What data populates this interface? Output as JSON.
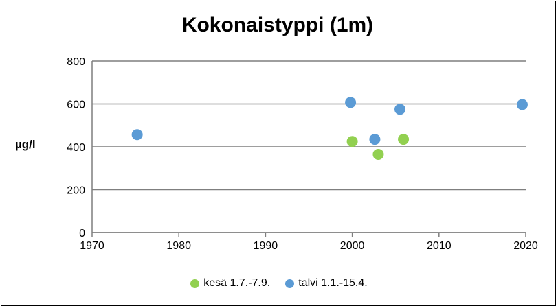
{
  "chart_data": {
    "type": "scatter",
    "title": "Kokonaistyppi (1m)",
    "xlabel": "",
    "ylabel": "µg/l",
    "xlim": [
      1970,
      2020
    ],
    "ylim": [
      0,
      800
    ],
    "xticks": [
      1970,
      1980,
      1990,
      2000,
      2010,
      2020
    ],
    "yticks": [
      0,
      200,
      400,
      600,
      800
    ],
    "grid": "horizontal",
    "legend_position": "bottom",
    "series": [
      {
        "name": "kesä 1.7.-7.9.",
        "color": "#92D050",
        "points": [
          {
            "x": 2000.0,
            "y": 425
          },
          {
            "x": 2003.0,
            "y": 365
          },
          {
            "x": 2005.9,
            "y": 435
          }
        ]
      },
      {
        "name": "talvi 1.1.-15.4.",
        "color": "#5B9BD5",
        "points": [
          {
            "x": 1975.2,
            "y": 457
          },
          {
            "x": 1999.8,
            "y": 607
          },
          {
            "x": 2002.6,
            "y": 435
          },
          {
            "x": 2005.5,
            "y": 575
          },
          {
            "x": 2019.6,
            "y": 597
          }
        ]
      }
    ]
  }
}
